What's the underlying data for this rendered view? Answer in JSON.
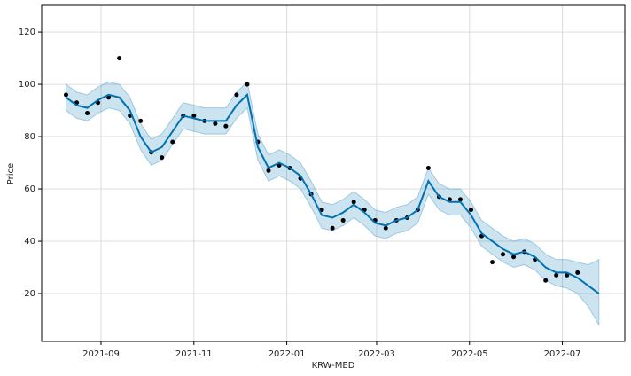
{
  "chart_data": {
    "type": "line",
    "xlabel": "KRW-MED",
    "ylabel": "Price",
    "x": [
      "2021-08-09",
      "2021-08-16",
      "2021-08-23",
      "2021-08-30",
      "2021-09-06",
      "2021-09-13",
      "2021-09-20",
      "2021-09-27",
      "2021-10-04",
      "2021-10-11",
      "2021-10-18",
      "2021-10-25",
      "2021-11-01",
      "2021-11-08",
      "2021-11-15",
      "2021-11-22",
      "2021-11-29",
      "2021-12-06",
      "2021-12-13",
      "2021-12-20",
      "2021-12-27",
      "2022-01-03",
      "2022-01-10",
      "2022-01-17",
      "2022-01-24",
      "2022-01-31",
      "2022-02-07",
      "2022-02-14",
      "2022-02-21",
      "2022-02-28",
      "2022-03-07",
      "2022-03-14",
      "2022-03-21",
      "2022-03-28",
      "2022-04-04",
      "2022-04-11",
      "2022-04-18",
      "2022-04-25",
      "2022-05-02",
      "2022-05-09",
      "2022-05-16",
      "2022-05-23",
      "2022-05-30",
      "2022-06-06",
      "2022-06-13",
      "2022-06-20",
      "2022-06-27",
      "2022-07-04",
      "2022-07-11",
      "2022-07-18",
      "2022-07-25"
    ],
    "observed": {
      "color": "#000000",
      "values": [
        96,
        93,
        89,
        93,
        95,
        110,
        88,
        86,
        74,
        72,
        78,
        88,
        88,
        86,
        85,
        84,
        96,
        100,
        78,
        67,
        69,
        68,
        64,
        58,
        52,
        45,
        48,
        55,
        52,
        48,
        45,
        48,
        49,
        52,
        68,
        57,
        56,
        56,
        52,
        42,
        32,
        35,
        34,
        36,
        33,
        25,
        27,
        27,
        28,
        null,
        null
      ]
    },
    "forecast": {
      "color": "#0072B2",
      "values": [
        95,
        92,
        91,
        94,
        96,
        95,
        90,
        80,
        74,
        76,
        82,
        88,
        87,
        86,
        86,
        86,
        92,
        96,
        76,
        68,
        70,
        68,
        65,
        58,
        50,
        49,
        51,
        54,
        51,
        47,
        46,
        48,
        49,
        52,
        63,
        57,
        55,
        55,
        50,
        43,
        40,
        37,
        35,
        36,
        34,
        30,
        28,
        28,
        26,
        23,
        20
      ]
    },
    "band": {
      "color": "#0072B2",
      "upper": [
        100,
        97,
        96,
        99,
        101,
        100,
        95,
        85,
        79,
        81,
        87,
        93,
        92,
        91,
        91,
        91,
        97,
        101,
        81,
        73,
        75,
        73,
        70,
        63,
        55,
        54,
        56,
        59,
        56,
        52,
        51,
        53,
        54,
        57,
        68,
        62,
        60,
        60,
        55,
        48,
        45,
        42,
        40,
        41,
        39,
        35,
        33,
        33,
        32,
        31,
        33
      ],
      "lower": [
        90,
        87,
        86,
        89,
        91,
        90,
        85,
        75,
        69,
        71,
        77,
        83,
        82,
        81,
        81,
        81,
        87,
        91,
        71,
        63,
        65,
        63,
        60,
        53,
        45,
        44,
        46,
        49,
        46,
        42,
        41,
        43,
        44,
        47,
        58,
        52,
        50,
        50,
        45,
        38,
        35,
        32,
        30,
        31,
        29,
        25,
        23,
        22,
        20,
        15,
        8
      ]
    },
    "xlim": [
      "2021-07-24",
      "2022-08-11"
    ],
    "xticks": [
      {
        "value": "2021-09-01",
        "label": "2021-09"
      },
      {
        "value": "2021-11-01",
        "label": "2021-11"
      },
      {
        "value": "2022-01-01",
        "label": "2022-01"
      },
      {
        "value": "2022-03-01",
        "label": "2022-03"
      },
      {
        "value": "2022-05-01",
        "label": "2022-05"
      },
      {
        "value": "2022-07-01",
        "label": "2022-07"
      }
    ],
    "ylim": [
      1.7,
      130.2
    ],
    "yticks": [
      20,
      40,
      60,
      80,
      100,
      120
    ],
    "grid": true
  }
}
